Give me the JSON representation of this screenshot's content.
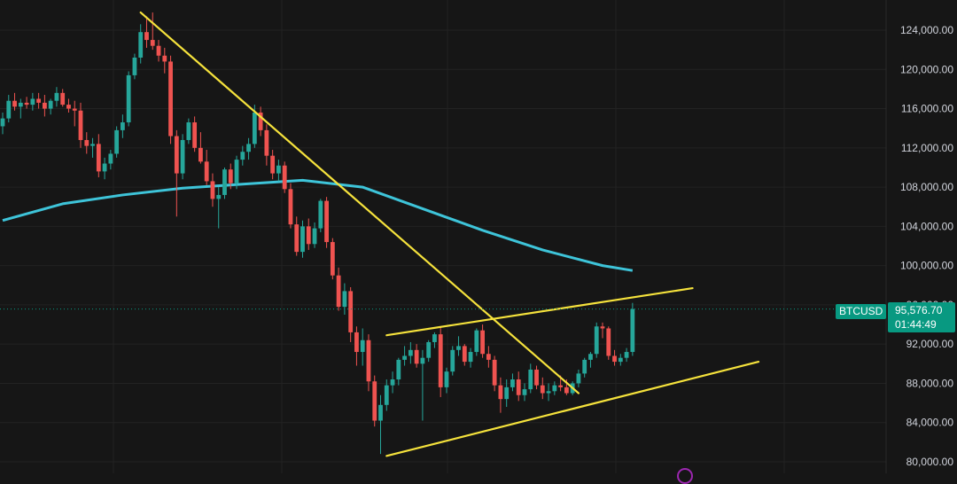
{
  "chart_data": {
    "type": "candlestick",
    "symbol": "BTCUSD",
    "last_price": "95,576.70",
    "countdown": "01:44:49",
    "y_axis": {
      "ticks": [
        "124,000.00",
        "120,000.00",
        "116,000.00",
        "112,000.00",
        "108,000.00",
        "104,000.00",
        "100,000.00",
        "96,000.00",
        "92,000.00",
        "88,000.00",
        "84,000.00",
        "80,000.00"
      ],
      "tick_values": [
        124000,
        120000,
        116000,
        112000,
        108000,
        104000,
        100000,
        96000,
        92000,
        88000,
        84000,
        80000
      ]
    },
    "ylim": [
      79800,
      126000
    ],
    "grid": true,
    "candles": [
      [
        114200,
        115600,
        113400,
        115000
      ],
      [
        115000,
        117400,
        114600,
        116800
      ],
      [
        116800,
        117600,
        115800,
        116200
      ],
      [
        116200,
        117000,
        115000,
        116600
      ],
      [
        116600,
        117200,
        116000,
        116400
      ],
      [
        116400,
        117600,
        115800,
        117000
      ],
      [
        117000,
        117600,
        116000,
        116600
      ],
      [
        116600,
        117400,
        115200,
        116000
      ],
      [
        116000,
        117000,
        115400,
        116800
      ],
      [
        116800,
        118200,
        116200,
        117600
      ],
      [
        117600,
        118000,
        116200,
        116400
      ],
      [
        116400,
        117000,
        115600,
        116000
      ],
      [
        116000,
        116800,
        114200,
        115800
      ],
      [
        115800,
        116600,
        112000,
        112800
      ],
      [
        112800,
        113600,
        111400,
        112200
      ],
      [
        112200,
        113000,
        111000,
        112400
      ],
      [
        112400,
        113400,
        109000,
        109600
      ],
      [
        109600,
        111000,
        108800,
        110400
      ],
      [
        110400,
        111800,
        109800,
        111400
      ],
      [
        111400,
        114200,
        111000,
        113800
      ],
      [
        113800,
        115400,
        113000,
        114600
      ],
      [
        114600,
        119800,
        114200,
        119400
      ],
      [
        119400,
        121600,
        119000,
        121200
      ],
      [
        121200,
        124600,
        120600,
        123800
      ],
      [
        123800,
        125400,
        122200,
        123000
      ],
      [
        123000,
        125800,
        122000,
        122400
      ],
      [
        122400,
        123000,
        120800,
        121400
      ],
      [
        121400,
        122200,
        119600,
        120800
      ],
      [
        120800,
        121400,
        112400,
        113200
      ],
      [
        113200,
        113800,
        105000,
        109400
      ],
      [
        109400,
        113400,
        108800,
        112800
      ],
      [
        112800,
        115000,
        112400,
        114600
      ],
      [
        114600,
        115200,
        111600,
        112000
      ],
      [
        112000,
        113600,
        110400,
        110600
      ],
      [
        110600,
        111800,
        108200,
        108600
      ],
      [
        108600,
        109400,
        106000,
        106800
      ],
      [
        106800,
        108000,
        103800,
        107200
      ],
      [
        107200,
        110000,
        106800,
        109800
      ],
      [
        109800,
        110400,
        107800,
        108400
      ],
      [
        108400,
        111200,
        107800,
        110800
      ],
      [
        110800,
        112200,
        110200,
        111600
      ],
      [
        111600,
        113000,
        110800,
        112400
      ],
      [
        112400,
        116400,
        112000,
        115600
      ],
      [
        115600,
        116200,
        113200,
        113800
      ],
      [
        113800,
        114400,
        110200,
        111200
      ],
      [
        111200,
        111800,
        108800,
        109400
      ],
      [
        109400,
        110800,
        108600,
        110200
      ],
      [
        110200,
        110600,
        107400,
        107800
      ],
      [
        107800,
        108400,
        103800,
        104200
      ],
      [
        104200,
        105000,
        101000,
        101400
      ],
      [
        101400,
        104600,
        100800,
        104000
      ],
      [
        104000,
        104800,
        101600,
        102200
      ],
      [
        102200,
        104400,
        101800,
        103800
      ],
      [
        103800,
        106800,
        103400,
        106600
      ],
      [
        106600,
        107000,
        101800,
        102400
      ],
      [
        102400,
        102800,
        98600,
        99000
      ],
      [
        99000,
        99800,
        95400,
        95800
      ],
      [
        95800,
        98200,
        95000,
        97400
      ],
      [
        97400,
        97800,
        92200,
        93200
      ],
      [
        93200,
        93800,
        89800,
        91200
      ],
      [
        91200,
        93600,
        89800,
        92400
      ],
      [
        92400,
        93000,
        87200,
        88200
      ],
      [
        88200,
        88800,
        83600,
        84200
      ],
      [
        84200,
        86800,
        80800,
        85800
      ],
      [
        85800,
        88400,
        85200,
        87800
      ],
      [
        87800,
        89200,
        87000,
        88400
      ],
      [
        88400,
        90600,
        87800,
        90400
      ],
      [
        90400,
        91800,
        89800,
        90800
      ],
      [
        90800,
        92200,
        90000,
        91400
      ],
      [
        91400,
        92000,
        89600,
        90000
      ],
      [
        90000,
        91400,
        84200,
        90600
      ],
      [
        90600,
        92400,
        90200,
        92200
      ],
      [
        92200,
        93200,
        91600,
        93000
      ],
      [
        93000,
        93800,
        86600,
        87600
      ],
      [
        87600,
        89600,
        87000,
        89200
      ],
      [
        89200,
        91800,
        88800,
        91400
      ],
      [
        91400,
        92800,
        90800,
        91800
      ],
      [
        91800,
        92000,
        89800,
        90200
      ],
      [
        90200,
        91600,
        89600,
        91200
      ],
      [
        91200,
        93600,
        90800,
        93400
      ],
      [
        93400,
        94000,
        90600,
        91000
      ],
      [
        91000,
        91800,
        89600,
        90400
      ],
      [
        90400,
        90800,
        87200,
        87800
      ],
      [
        87800,
        88600,
        85000,
        86400
      ],
      [
        86400,
        88400,
        85600,
        87600
      ],
      [
        87600,
        89000,
        87200,
        88400
      ],
      [
        88400,
        89200,
        86200,
        86800
      ],
      [
        86800,
        88000,
        86200,
        87400
      ],
      [
        87400,
        90000,
        87000,
        89400
      ],
      [
        89400,
        89800,
        87400,
        87800
      ],
      [
        87800,
        88600,
        86400,
        87000
      ],
      [
        87000,
        88000,
        86200,
        87200
      ],
      [
        87200,
        88200,
        86800,
        87800
      ],
      [
        87800,
        88800,
        87200,
        87600
      ],
      [
        87600,
        88400,
        86800,
        87000
      ],
      [
        87000,
        88200,
        86800,
        88000
      ],
      [
        88000,
        89400,
        87600,
        89000
      ],
      [
        89000,
        90600,
        88600,
        90400
      ],
      [
        90400,
        91200,
        89600,
        91000
      ],
      [
        91000,
        94200,
        90600,
        93800
      ],
      [
        93800,
        94200,
        92600,
        93600
      ],
      [
        93600,
        93800,
        90400,
        90800
      ],
      [
        90800,
        91400,
        89800,
        90200
      ],
      [
        90200,
        91000,
        89800,
        90600
      ],
      [
        90600,
        91600,
        90200,
        91200
      ],
      [
        91200,
        96200,
        90800,
        95577
      ]
    ],
    "moving_average": {
      "x": [
        0,
        10,
        20,
        30,
        40,
        50,
        60,
        70,
        80,
        90,
        100,
        105
      ],
      "y": [
        104600,
        106300,
        107200,
        107900,
        108300,
        108700,
        108000,
        105800,
        103600,
        101600,
        100000,
        99500
      ]
    },
    "trend_lines": [
      {
        "x1": 23,
        "y1": 125800,
        "x2": 96,
        "y2": 87000
      },
      {
        "x1": 64,
        "y1": 92900,
        "x2": 115,
        "y2": 97700
      },
      {
        "x1": 64,
        "y1": 80600,
        "x2": 126,
        "y2": 90200
      }
    ]
  }
}
